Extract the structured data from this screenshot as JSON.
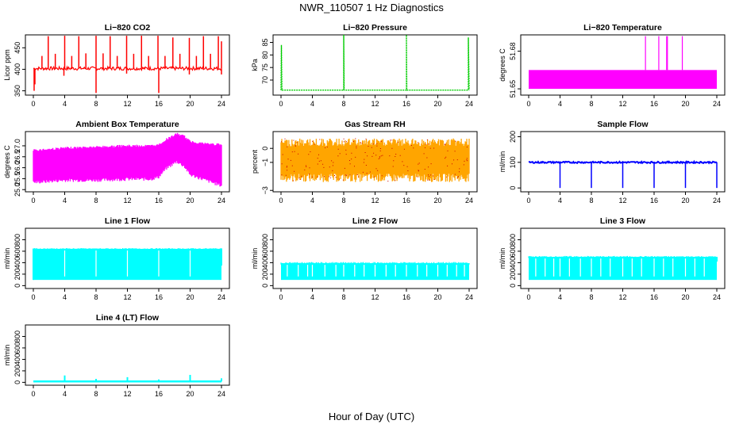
{
  "figure": {
    "title": "NWR_110507  1 Hz Diagnostics",
    "xlabel": "Hour of Day (UTC)"
  },
  "chart_data": [
    {
      "id": "co2",
      "type": "line",
      "title": "Li−820 CO2",
      "ylabel": "Licor ppm",
      "color": "#ff0000",
      "x_ticks": [
        "0",
        "4",
        "8",
        "12",
        "16",
        "20",
        "24"
      ],
      "xlim": [
        0,
        24
      ],
      "y_ticks": [
        "350",
        "400",
        "450"
      ],
      "ylim": [
        340,
        480
      ],
      "series": [
        {
          "base": 402,
          "noise": 4,
          "spikes": [
            [
              1.1,
              431
            ],
            [
              1.9,
              477
            ],
            [
              2.8,
              436
            ],
            [
              4.0,
              478
            ],
            [
              4.9,
              431
            ],
            [
              5.8,
              477
            ],
            [
              6.7,
              437
            ],
            [
              8.0,
              478
            ],
            [
              8.9,
              437
            ],
            [
              9.8,
              477
            ],
            [
              10.7,
              431
            ],
            [
              11.9,
              478
            ],
            [
              12.8,
              436
            ],
            [
              13.8,
              478
            ],
            [
              14.7,
              431
            ],
            [
              15.9,
              478
            ],
            [
              16.8,
              431
            ],
            [
              17.8,
              474
            ],
            [
              18.7,
              436
            ],
            [
              19.9,
              473
            ],
            [
              20.8,
              431
            ],
            [
              21.7,
              477
            ],
            [
              22.6,
              436
            ],
            [
              23.6,
              477
            ],
            [
              24.0,
              465
            ]
          ],
          "dips": [
            [
              0.1,
              350
            ],
            [
              0.2,
              365
            ],
            [
              3.9,
              385
            ],
            [
              8.0,
              345
            ],
            [
              11.9,
              390
            ],
            [
              16.0,
              345
            ],
            [
              19.9,
              388
            ],
            [
              24.0,
              388
            ]
          ]
        }
      ]
    },
    {
      "id": "pressure",
      "type": "line",
      "title": "Li−820 Pressure",
      "ylabel": "kPa",
      "color": "#00cc00",
      "x_ticks": [
        "0",
        "4",
        "8",
        "12",
        "16",
        "20",
        "24"
      ],
      "xlim": [
        0,
        24
      ],
      "y_ticks": [
        "70",
        "75",
        "80",
        "85"
      ],
      "ylim": [
        64,
        88
      ],
      "series": [
        {
          "points": [
            [
              0,
              66
            ],
            [
              0.05,
              84
            ],
            [
              0.12,
              66
            ],
            [
              8,
              66
            ],
            [
              8,
              88
            ],
            [
              8.05,
              66
            ],
            [
              16,
              66
            ],
            [
              16,
              88
            ],
            [
              16.05,
              66
            ],
            [
              23.9,
              66
            ],
            [
              23.9,
              87
            ],
            [
              24,
              66
            ]
          ]
        }
      ]
    },
    {
      "id": "temperature",
      "type": "area",
      "title": "Li−820 Temperature",
      "ylabel": "degrees C",
      "color": "#ff00ff",
      "x_ticks": [
        "0",
        "4",
        "8",
        "12",
        "16",
        "20",
        "24"
      ],
      "xlim": [
        0,
        24
      ],
      "y_ticks": [
        "51.65",
        "51.68"
      ],
      "ylim": [
        51.645,
        51.693
      ],
      "series": [
        {
          "band": [
            51.65,
            51.665
          ],
          "spikes": [
            [
              14.9,
              51.692
            ],
            [
              16.6,
              51.692
            ],
            [
              17.6,
              51.692
            ],
            [
              17.7,
              51.692
            ],
            [
              19.6,
              51.692
            ]
          ]
        }
      ]
    },
    {
      "id": "ambient",
      "type": "area",
      "title": "Ambient Box Temperature",
      "ylabel": "degrees C",
      "color": "#ff00ff",
      "x_ticks": [
        "0",
        "4",
        "8",
        "12",
        "16",
        "20",
        "24"
      ],
      "xlim": [
        0,
        24
      ],
      "y_ticks": [
        "25.0",
        "25.5",
        "26.0",
        "26.5",
        "27.0"
      ],
      "ylim": [
        24.9,
        27.65
      ],
      "series": [
        {
          "upper": [
            [
              0,
              26.85
            ],
            [
              2,
              26.9
            ],
            [
              4,
              26.95
            ],
            [
              8,
              27.0
            ],
            [
              12,
              27.05
            ],
            [
              15,
              27.05
            ],
            [
              16,
              27.1
            ],
            [
              17,
              27.35
            ],
            [
              18.3,
              27.6
            ],
            [
              19.2,
              27.5
            ],
            [
              20,
              27.25
            ],
            [
              22,
              27.15
            ],
            [
              24,
              27.1
            ]
          ],
          "lower": [
            [
              0,
              25.25
            ],
            [
              2,
              25.3
            ],
            [
              4,
              25.35
            ],
            [
              8,
              25.35
            ],
            [
              12,
              25.4
            ],
            [
              15,
              25.4
            ],
            [
              16,
              25.5
            ],
            [
              17,
              25.9
            ],
            [
              18.3,
              26.2
            ],
            [
              19.2,
              26.0
            ],
            [
              20,
              25.6
            ],
            [
              22,
              25.35
            ],
            [
              24,
              25.1
            ]
          ]
        }
      ]
    },
    {
      "id": "rh",
      "type": "area",
      "title": "Gas Stream RH",
      "ylabel": "percent",
      "color": "#ffa500",
      "dot_color": "#cc0000",
      "x_ticks": [
        "0",
        "4",
        "8",
        "12",
        "16",
        "20",
        "24"
      ],
      "xlim": [
        0,
        24
      ],
      "y_ticks": [
        "−3",
        "−1",
        "0"
      ],
      "ylim": [
        -3.1,
        1.2
      ],
      "series": [
        {
          "upper": 0.7,
          "lower": -2.4,
          "upper_jitter": 0.55,
          "lower_jitter": 0.6
        }
      ]
    },
    {
      "id": "sampleflow",
      "type": "line",
      "title": "Sample Flow",
      "ylabel": "ml/min",
      "color": "#0000ff",
      "x_ticks": [
        "0",
        "4",
        "8",
        "12",
        "16",
        "20",
        "24"
      ],
      "xlim": [
        0,
        24
      ],
      "y_ticks": [
        "0",
        "100",
        "200"
      ],
      "ylim": [
        -15,
        220
      ],
      "series": [
        {
          "level": 100,
          "noise": 3,
          "dips": [
            [
              4.0,
              0
            ],
            [
              8.0,
              0
            ],
            [
              12.0,
              0
            ],
            [
              16.0,
              0
            ],
            [
              20.0,
              0
            ],
            [
              24.0,
              0
            ]
          ]
        }
      ]
    },
    {
      "id": "line1",
      "type": "area",
      "title": "Line 1 Flow",
      "ylabel": "ml/min",
      "color": "#00ffff",
      "x_ticks": [
        "0",
        "4",
        "8",
        "12",
        "16",
        "20",
        "24"
      ],
      "xlim": [
        0,
        24
      ],
      "y_ticks": [
        "0",
        "200",
        "400",
        "600",
        "800"
      ],
      "ylim": [
        -50,
        1000
      ],
      "series": [
        {
          "band": [
            100,
            640
          ],
          "jitter": 15,
          "gaps": [
            4.0,
            8.0,
            12.0,
            16.0,
            20.0
          ],
          "dips": [
            [
              0,
              100
            ],
            [
              24,
              350
            ]
          ]
        }
      ]
    },
    {
      "id": "line2",
      "type": "area",
      "title": "Line 2 Flow",
      "ylabel": "ml/min",
      "color": "#00ffff",
      "x_ticks": [
        "0",
        "4",
        "8",
        "12",
        "16",
        "20",
        "24"
      ],
      "xlim": [
        0,
        24
      ],
      "y_ticks": [
        "0",
        "200",
        "400",
        "600",
        "800"
      ],
      "ylim": [
        -50,
        1000
      ],
      "series": [
        {
          "band": [
            100,
            390
          ],
          "jitter": 22,
          "gaps": [
            0.8,
            2.2,
            3.4,
            4.0,
            5.6,
            7.0,
            8.0,
            9.4,
            10.6,
            12.0,
            13.4,
            14.6,
            16.0,
            17.4,
            18.6,
            20.0,
            21.2,
            22.4,
            23.4
          ],
          "dips": []
        }
      ]
    },
    {
      "id": "line3",
      "type": "area",
      "title": "Line 3 Flow",
      "ylabel": "ml/min",
      "color": "#00ffff",
      "x_ticks": [
        "0",
        "4",
        "8",
        "12",
        "16",
        "20",
        "24"
      ],
      "xlim": [
        0,
        24
      ],
      "y_ticks": [
        "0",
        "200",
        "400",
        "600",
        "800"
      ],
      "ylim": [
        -50,
        1000
      ],
      "series": [
        {
          "band": [
            100,
            500
          ],
          "jitter": 18,
          "gaps": [
            0.9,
            2.1,
            3.2,
            4.0,
            5.2,
            6.6,
            8.0,
            9.2,
            10.4,
            12.0,
            13.2,
            14.4,
            16.0,
            17.2,
            18.4,
            20.0,
            21.2,
            22.4
          ],
          "dips": [
            [
              24,
              420
            ]
          ]
        }
      ]
    },
    {
      "id": "line4",
      "type": "line",
      "title": "Line 4 (LT) Flow",
      "ylabel": "ml/min",
      "color": "#00ffff",
      "x_ticks": [
        "0",
        "4",
        "8",
        "12",
        "16",
        "20",
        "24"
      ],
      "xlim": [
        0,
        24
      ],
      "y_ticks": [
        "0",
        "200",
        "400",
        "600",
        "800"
      ],
      "ylim": [
        -50,
        1000
      ],
      "series": [
        {
          "level": 15,
          "noise": 3,
          "spikes": [
            [
              4.0,
              120
            ],
            [
              8.0,
              60
            ],
            [
              12.0,
              90
            ],
            [
              16.0,
              50
            ],
            [
              20.0,
              130
            ],
            [
              24.0,
              70
            ]
          ]
        }
      ]
    }
  ]
}
